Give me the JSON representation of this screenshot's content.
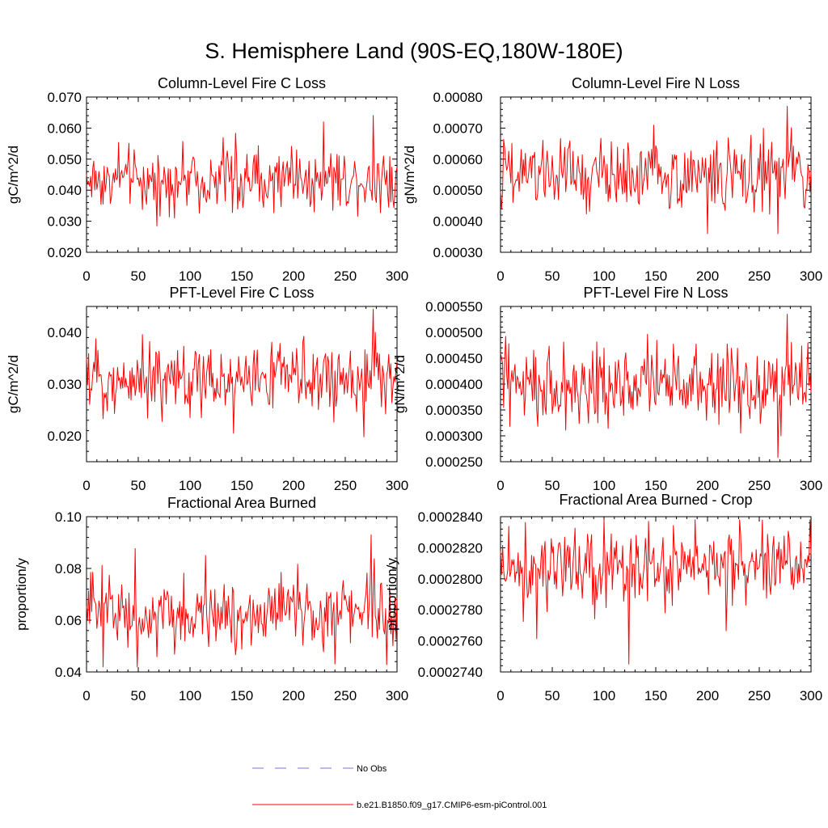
{
  "figure": {
    "title": "S. Hemisphere Land (90S-EQ,180W-180E)"
  },
  "legend": {
    "entries": [
      {
        "label": "No Obs",
        "color": "#7777dd",
        "style": "dashed"
      },
      {
        "label": "b.e21.B1850.f09_g17.CMIP6-esm-piControl.001",
        "color": "#ff0000",
        "style": "solid"
      }
    ]
  },
  "chart_data": [
    {
      "type": "line",
      "title": "Column-Level Fire C Loss",
      "ylabel": "gC/m^2/d",
      "xlabel": "",
      "xlim": [
        0,
        300
      ],
      "ylim": [
        0.02,
        0.07
      ],
      "xticks": [
        0,
        50,
        100,
        150,
        200,
        250,
        300
      ],
      "xtick_labels": [
        "0",
        "50",
        "100",
        "150",
        "200",
        "250",
        "300"
      ],
      "yticks": [
        0.02,
        0.03,
        0.04,
        0.05,
        0.06,
        0.07
      ],
      "ytick_labels": [
        "0.020",
        "0.030",
        "0.040",
        "0.050",
        "0.060",
        "0.070"
      ],
      "series": [
        {
          "name": "b.e21.B1850.f09_g17.CMIP6-esm-piControl.001",
          "color": "#ff0000",
          "x_start": 0,
          "x_end": 300,
          "n_points": 301,
          "mean": 0.0435,
          "min": 0.0285,
          "max": 0.064,
          "extremes_at": [
            68,
            277
          ]
        }
      ]
    },
    {
      "type": "line",
      "title": "Column-Level Fire N Loss",
      "ylabel": "gN/m^2/d",
      "xlabel": "",
      "xlim": [
        0,
        300
      ],
      "ylim": [
        0.0003,
        0.0008
      ],
      "xticks": [
        0,
        50,
        100,
        150,
        200,
        250,
        300
      ],
      "xtick_labels": [
        "0",
        "50",
        "100",
        "150",
        "200",
        "250",
        "300"
      ],
      "yticks": [
        0.0003,
        0.0004,
        0.0005,
        0.0006,
        0.0007,
        0.0008
      ],
      "ytick_labels": [
        "0.00030",
        "0.00040",
        "0.00050",
        "0.00060",
        "0.00070",
        "0.00080"
      ],
      "series": [
        {
          "name": "b.e21.B1850.f09_g17.CMIP6-esm-piControl.001",
          "color": "#ff0000",
          "x_start": 0,
          "x_end": 300,
          "n_points": 301,
          "mean": 0.000555,
          "min": 0.00036,
          "max": 0.00077,
          "extremes_at": [
            268,
            277
          ]
        }
      ]
    },
    {
      "type": "line",
      "title": "PFT-Level Fire C Loss",
      "ylabel": "gC/m^2/d",
      "xlabel": "",
      "xlim": [
        0,
        300
      ],
      "ylim": [
        0.015,
        0.045
      ],
      "xticks": [
        0,
        50,
        100,
        150,
        200,
        250,
        300
      ],
      "xtick_labels": [
        "0",
        "50",
        "100",
        "150",
        "200",
        "250",
        "300"
      ],
      "yticks": [
        0.02,
        0.03,
        0.04
      ],
      "ytick_labels": [
        "0.020",
        "0.030",
        "0.040"
      ],
      "series": [
        {
          "name": "b.e21.B1850.f09_g17.CMIP6-esm-piControl.001",
          "color": "#ff0000",
          "x_start": 0,
          "x_end": 300,
          "n_points": 301,
          "mean": 0.031,
          "min": 0.0198,
          "max": 0.0445,
          "extremes_at": [
            268,
            277
          ]
        }
      ]
    },
    {
      "type": "line",
      "title": "PFT-Level Fire N Loss",
      "ylabel": "gN/m^2/d",
      "xlabel": "",
      "xlim": [
        0,
        300
      ],
      "ylim": [
        0.00025,
        0.00055
      ],
      "xticks": [
        0,
        50,
        100,
        150,
        200,
        250,
        300
      ],
      "xtick_labels": [
        "0",
        "50",
        "100",
        "150",
        "200",
        "250",
        "300"
      ],
      "yticks": [
        0.00025,
        0.0003,
        0.00035,
        0.0004,
        0.00045,
        0.0005,
        0.00055
      ],
      "ytick_labels": [
        "0.000250",
        "0.000300",
        "0.000350",
        "0.000400",
        "0.000450",
        "0.000500",
        "0.000550"
      ],
      "series": [
        {
          "name": "b.e21.B1850.f09_g17.CMIP6-esm-piControl.001",
          "color": "#ff0000",
          "x_start": 0,
          "x_end": 300,
          "n_points": 301,
          "mean": 0.000395,
          "min": 0.000258,
          "max": 0.000535,
          "extremes_at": [
            268,
            277
          ]
        }
      ]
    },
    {
      "type": "line",
      "title": "Fractional Area Burned",
      "ylabel": "proportion/y",
      "xlabel": "",
      "xlim": [
        0,
        300
      ],
      "ylim": [
        0.04,
        0.1
      ],
      "xticks": [
        0,
        50,
        100,
        150,
        200,
        250,
        300
      ],
      "xtick_labels": [
        "0",
        "50",
        "100",
        "150",
        "200",
        "250",
        "300"
      ],
      "yticks": [
        0.04,
        0.06,
        0.08,
        0.1
      ],
      "ytick_labels": [
        "0.04",
        "0.06",
        "0.08",
        "0.10"
      ],
      "series": [
        {
          "name": "b.e21.B1850.f09_g17.CMIP6-esm-piControl.001",
          "color": "#ff0000",
          "x_start": 0,
          "x_end": 300,
          "n_points": 301,
          "mean": 0.063,
          "min": 0.042,
          "max": 0.093,
          "extremes_at": [
            16,
            275
          ]
        }
      ]
    },
    {
      "type": "line",
      "title": "Fractional Area Burned - Crop",
      "ylabel": "proportion/y",
      "xlabel": "",
      "xlim": [
        0,
        300
      ],
      "ylim": [
        0.000274,
        0.000284
      ],
      "xticks": [
        0,
        50,
        100,
        150,
        200,
        250,
        300
      ],
      "xtick_labels": [
        "0",
        "50",
        "100",
        "150",
        "200",
        "250",
        "300"
      ],
      "yticks": [
        0.000274,
        0.000276,
        0.000278,
        0.00028,
        0.000282,
        0.000284
      ],
      "ytick_labels": [
        "0.0002740",
        "0.0002760",
        "0.0002780",
        "0.0002800",
        "0.0002820",
        "0.0002840"
      ],
      "series": [
        {
          "name": "b.e21.B1850.f09_g17.CMIP6-esm-piControl.001",
          "color": "#ff0000",
          "x_start": 0,
          "x_end": 300,
          "n_points": 301,
          "mean": 0.0002808,
          "min": 0.0002745,
          "max": 0.0002838,
          "extremes_at": [
            124,
            100
          ]
        }
      ]
    }
  ]
}
